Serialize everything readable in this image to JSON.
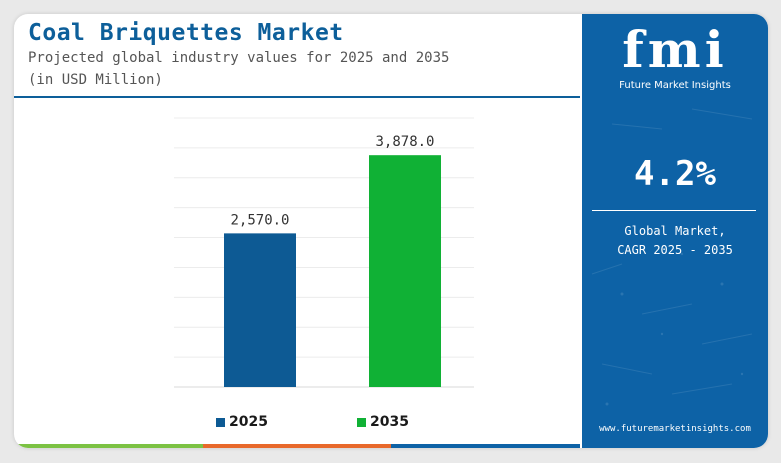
{
  "header": {
    "title": "Coal Briquettes Market",
    "subtitle_line1": "Projected global industry values for 2025 and 2035",
    "subtitle_line2": "(in USD Million)"
  },
  "chart_data": {
    "type": "bar",
    "categories": [
      "2025",
      "2035"
    ],
    "values": [
      2570.0,
      3878.0
    ],
    "value_labels": [
      "2,570.0",
      "3,878.0"
    ],
    "title": "Coal Briquettes Market",
    "xlabel": "",
    "ylabel": "",
    "ylim": [
      0,
      4500
    ],
    "grid": true,
    "legend": "bottom",
    "colors": [
      "#0d5a94",
      "#10b135"
    ]
  },
  "legend": {
    "items": [
      {
        "label": "2025",
        "color": "#0d5a94"
      },
      {
        "label": "2035",
        "color": "#10b135"
      }
    ]
  },
  "side_panel": {
    "logo_text": "fmi",
    "logo_subtitle": "Future Market Insights",
    "cagr_value": "4.2%",
    "cagr_caption_line1": "Global Market,",
    "cagr_caption_line2": "CAGR 2025 - 2035",
    "url": "www.futuremarketinsights.com",
    "background_color": "#0d62a6"
  },
  "bottom_strip_colors": [
    "#7cc243",
    "#e8692b",
    "#0d62a6"
  ]
}
